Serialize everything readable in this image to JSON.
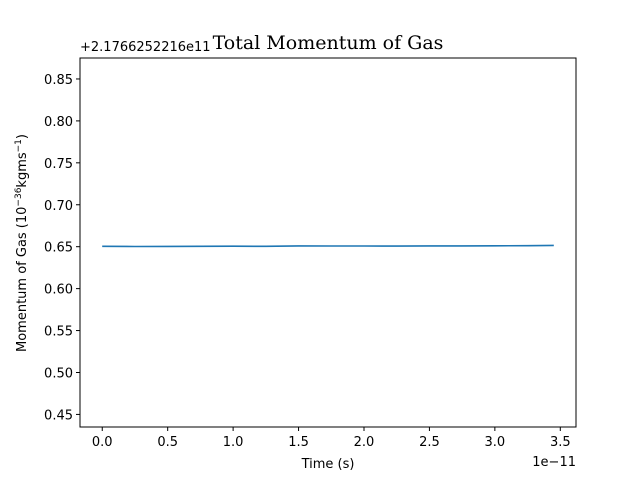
{
  "chart_data": {
    "type": "line",
    "title": "Total Momentum of Gas",
    "xlabel": "Time (s)",
    "ylabel_main": "Momentum of Gas (10",
    "ylabel_exp1": "−36",
    "ylabel_unit": "kgms",
    "ylabel_exp2": "−1",
    "ylabel_close": ")",
    "x_offset_label": "1e−11",
    "y_offset_label": "+2.1766252216e11",
    "xlim": [
      -0.17,
      3.62
    ],
    "ylim": [
      0.435,
      0.875
    ],
    "x_ticks": [
      {
        "value": 0.0,
        "label": "0.0"
      },
      {
        "value": 0.5,
        "label": "0.5"
      },
      {
        "value": 1.0,
        "label": "1.0"
      },
      {
        "value": 1.5,
        "label": "1.5"
      },
      {
        "value": 2.0,
        "label": "2.0"
      },
      {
        "value": 2.5,
        "label": "2.5"
      },
      {
        "value": 3.0,
        "label": "3.0"
      },
      {
        "value": 3.5,
        "label": "3.5"
      }
    ],
    "y_ticks": [
      {
        "value": 0.45,
        "label": "0.45"
      },
      {
        "value": 0.5,
        "label": "0.50"
      },
      {
        "value": 0.55,
        "label": "0.55"
      },
      {
        "value": 0.6,
        "label": "0.60"
      },
      {
        "value": 0.65,
        "label": "0.65"
      },
      {
        "value": 0.7,
        "label": "0.70"
      },
      {
        "value": 0.75,
        "label": "0.75"
      },
      {
        "value": 0.8,
        "label": "0.80"
      },
      {
        "value": 0.85,
        "label": "0.85"
      }
    ],
    "series": [
      {
        "color": "#1f77b4",
        "x": [
          0.0,
          0.25,
          0.5,
          0.75,
          1.0,
          1.25,
          1.5,
          1.75,
          2.0,
          2.25,
          2.5,
          2.75,
          3.0,
          3.25,
          3.45
        ],
        "y": [
          0.6505,
          0.6502,
          0.6503,
          0.6505,
          0.6506,
          0.6505,
          0.6509,
          0.6508,
          0.6508,
          0.6507,
          0.651,
          0.651,
          0.6511,
          0.6512,
          0.6515
        ]
      }
    ]
  }
}
